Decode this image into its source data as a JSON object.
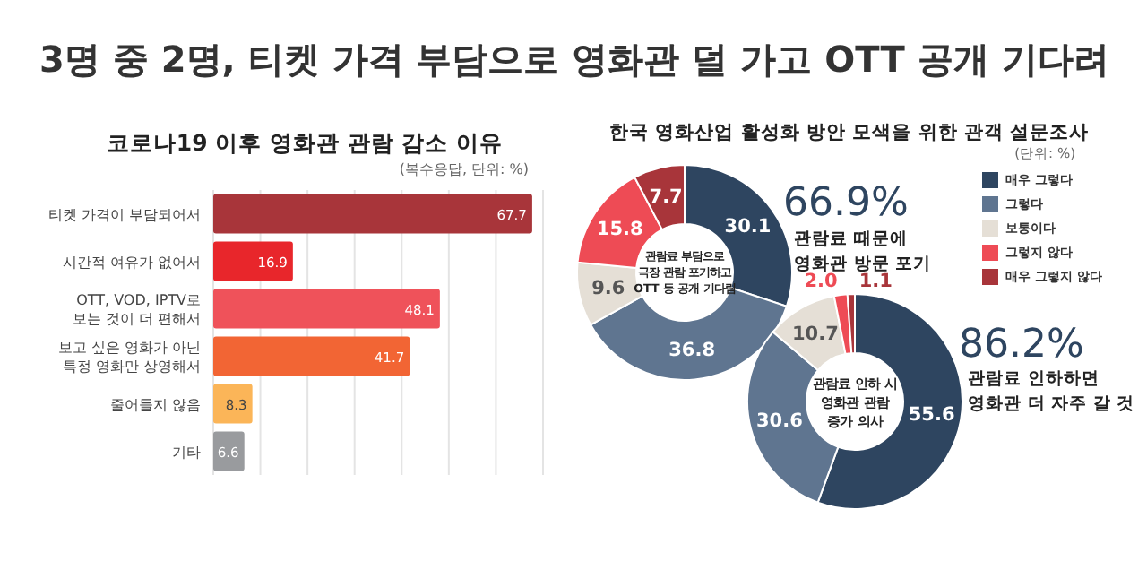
{
  "chart_data": [
    {
      "type": "other",
      "title": "3명 중 2명, 티켓 가격 부담으로 영화관 덜 가고 OTT 공개 기다려"
    },
    {
      "type": "bar",
      "orientation": "horizontal",
      "title": "코로나19 이후 영화관 관람 감소 이유",
      "annotations": [
        "(복수응답, 단위: %)"
      ],
      "categories": [
        "티켓 가격이 부담되어서",
        "시간적 여유가 없어서",
        "OTT, VOD, IPTV로\n보는 것이 더 편해서",
        "보고 싶은 영화가 아닌\n특정 영화만 상영해서",
        "줄어들지 않음",
        "기타"
      ],
      "values": [
        67.7,
        16.9,
        48.1,
        41.7,
        8.3,
        6.6
      ],
      "colors": [
        "#a8353a",
        "#e8262b",
        "#ef525a",
        "#f26534",
        "#fbb558",
        "#999b9e"
      ],
      "xlim": [
        0,
        70
      ],
      "xticks": [
        {
          "value": 0,
          "label": null
        },
        {
          "value": 10,
          "label": null
        },
        {
          "value": 20,
          "label": null
        },
        {
          "value": 30,
          "label": null
        },
        {
          "value": 40,
          "label": null
        },
        {
          "value": 50,
          "label": null
        },
        {
          "value": 60,
          "label": null
        },
        {
          "value": 70,
          "label": null
        }
      ],
      "grid": "x",
      "tick_labels": "y",
      "data_labels": true
    },
    {
      "type": "donut",
      "title": "한국 영화산업 활성화 방안 모색을 위한 관객 설문조사",
      "annotations": [
        "(단위: %)",
        "관람료 부담으로\n극장 관람 포기하고\nOTT 등 공개 기다림",
        "66.9%",
        "관람료 때문에\n영화관 방문 포기"
      ],
      "categories": [
        "매우 그렇다",
        "그렇다",
        "보통이다",
        "그렇지 않다",
        "매우 그렇지 않다"
      ],
      "values": [
        30.1,
        36.8,
        9.6,
        15.8,
        7.7
      ],
      "colors": [
        "#2e4560",
        "#5f7590",
        "#e5dfd6",
        "#ee4b55",
        "#a8353a"
      ],
      "legend": "right",
      "data_labels": true
    },
    {
      "type": "donut",
      "annotations": [
        "관람료 인하 시\n영화관 관람\n증가 의사",
        "86.2%",
        "관람료 인하하면\n영화관 더 자주 갈 것"
      ],
      "categories": [
        null,
        null,
        null,
        null,
        null
      ],
      "values": [
        55.6,
        30.6,
        10.7,
        2.0,
        1.1
      ],
      "value_labels": [
        "55.6",
        "30.6",
        "10.7",
        "2.0",
        "1.1"
      ],
      "colors": [
        "#2e4560",
        "#5f7590",
        "#e5dfd6",
        "#ee4b55",
        "#a8353a"
      ]
    }
  ]
}
